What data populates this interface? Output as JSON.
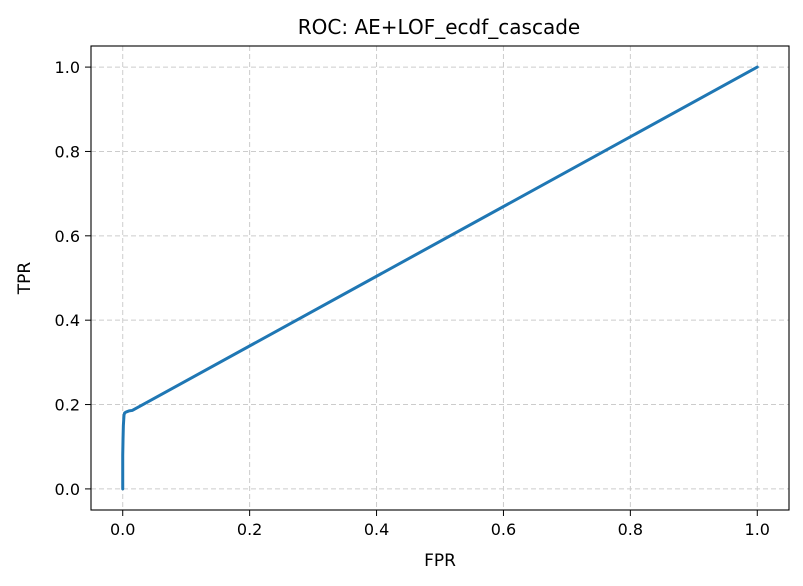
{
  "chart_data": {
    "type": "line",
    "title": "ROC: AE+LOF_ecdf_cascade",
    "xlabel": "FPR",
    "ylabel": "TPR",
    "xlim": [
      -0.05,
      1.05
    ],
    "ylim": [
      -0.05,
      1.05
    ],
    "xticks": [
      0.0,
      0.2,
      0.4,
      0.6,
      0.8,
      1.0
    ],
    "yticks": [
      0.0,
      0.2,
      0.4,
      0.6,
      0.8,
      1.0
    ],
    "xtick_labels": [
      "0.0",
      "0.2",
      "0.4",
      "0.6",
      "0.8",
      "1.0"
    ],
    "ytick_labels": [
      "0.0",
      "0.2",
      "0.4",
      "0.6",
      "0.8",
      "1.0"
    ],
    "grid": true,
    "legend": false,
    "series": [
      {
        "color": "#1f77b4",
        "x": [
          0.0,
          0.0,
          0.0005,
          0.001,
          0.002,
          0.003,
          0.005,
          0.01,
          0.015,
          1.0
        ],
        "y": [
          0.0,
          0.08,
          0.12,
          0.15,
          0.175,
          0.18,
          0.182,
          0.185,
          0.186,
          1.0
        ]
      }
    ]
  }
}
